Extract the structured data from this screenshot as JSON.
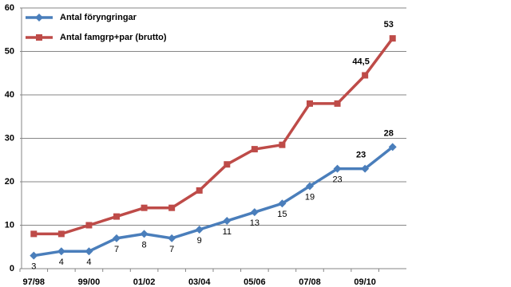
{
  "chart_data": {
    "type": "line",
    "categories": [
      "97/98",
      null,
      "99/00",
      null,
      "01/02",
      null,
      "03/04",
      null,
      "05/06",
      null,
      "07/08",
      null,
      "09/10",
      null
    ],
    "series": [
      {
        "name": "Antal föryngringar",
        "color": "#4a7ebb",
        "marker": "diamond",
        "data_labels": true,
        "values": [
          3,
          4,
          4,
          7,
          8,
          7,
          9,
          11,
          13,
          15,
          19,
          23,
          23,
          28
        ]
      },
      {
        "name": "Antal famgrp+par (brutto)",
        "color": "#be4b48",
        "marker": "square",
        "values": [
          8,
          8,
          10,
          12,
          14,
          14,
          18,
          24,
          27.5,
          28.5,
          38,
          38,
          44.5,
          53
        ],
        "value_labels": [
          null,
          null,
          null,
          null,
          null,
          null,
          null,
          null,
          null,
          null,
          null,
          null,
          "44,5",
          "53"
        ]
      }
    ],
    "ylim": [
      0,
      60
    ],
    "yticks": [
      0,
      10,
      20,
      30,
      40,
      50,
      60
    ],
    "grid": true
  }
}
